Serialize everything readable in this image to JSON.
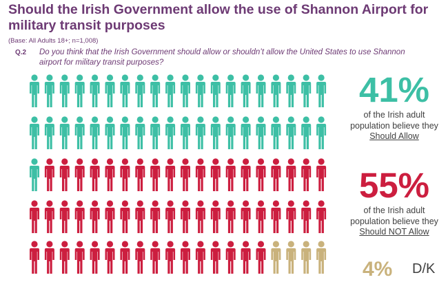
{
  "header": {
    "title": "Should the Irish Government allow the use of Shannon Airport for military transit purposes",
    "base": "(Base: All Adults 18+; n=1,008)",
    "question_number": "Q.2",
    "question_text": "Do you think that the Irish Government should allow or shouldn’t allow the United States to use Shannon airport for military transit purposes?"
  },
  "results": {
    "allow": {
      "value": "41%",
      "desc_line1": "of the Irish adult",
      "desc_line2": "population believe they",
      "desc_line3": "Should Allow",
      "color": "#3dbfa5"
    },
    "not_allow": {
      "value": "55%",
      "desc_line1": "of the Irish adult",
      "desc_line2": "population believe they",
      "desc_line3": "Should NOT Allow",
      "color": "#cc1e3f"
    },
    "dk": {
      "value": "4%",
      "label": "D/K",
      "color": "#c9b27c"
    }
  },
  "chart_data": {
    "type": "pictogram",
    "categories": [
      "Should Allow",
      "Should NOT Allow",
      "D/K"
    ],
    "values": [
      41,
      55,
      4
    ],
    "unit": "%",
    "total_icons": 100,
    "rows": 5,
    "icons_per_row": 20,
    "colors": [
      "#3dbfa5",
      "#cc1e3f",
      "#c9b27c"
    ]
  }
}
